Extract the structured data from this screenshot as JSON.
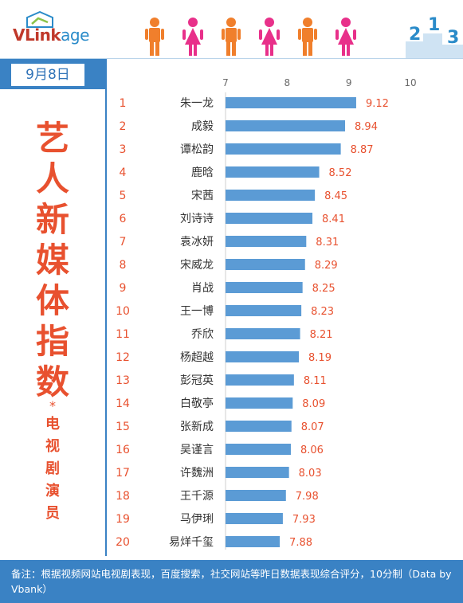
{
  "logo": {
    "brand": "VLink",
    "brand_suffix": "age"
  },
  "podium_numbers": [
    "2",
    "1",
    "3"
  ],
  "date": "9月8日",
  "title_chars": [
    "艺",
    "人",
    "新",
    "媒",
    "体",
    "指",
    "数"
  ],
  "title_star": "*",
  "subtitle_chars": [
    "电",
    "视",
    "剧",
    "演",
    "员"
  ],
  "footer_note": "备注：根据视频网站电视剧表现，百度搜索，社交网站等昨日数据表现综合评分，10分制（Data by Vbank）",
  "colors": {
    "bar": "#5b9bd5",
    "accent": "#e8512f",
    "header_blue": "#3a82c4",
    "male": "#f07f2c",
    "female": "#e8308a"
  },
  "people_icons": [
    "male-icon",
    "female-icon",
    "male-icon",
    "female-icon",
    "male-icon",
    "female-icon"
  ],
  "chart_data": {
    "type": "bar",
    "orientation": "horizontal",
    "xlim": [
      7,
      10
    ],
    "xticks": [
      "7",
      "8",
      "9",
      "10"
    ],
    "ranks": [
      "1",
      "2",
      "3",
      "4",
      "5",
      "6",
      "7",
      "8",
      "9",
      "10",
      "11",
      "12",
      "13",
      "14",
      "15",
      "16",
      "17",
      "18",
      "19",
      "20"
    ],
    "categories": [
      "朱一龙",
      "成毅",
      "谭松韵",
      "鹿晗",
      "宋茜",
      "刘诗诗",
      "袁冰妍",
      "宋威龙",
      "肖战",
      "王一博",
      "乔欣",
      "杨超越",
      "彭冠英",
      "白敬亭",
      "张新成",
      "吴谨言",
      "许魏洲",
      "王千源",
      "马伊琍",
      "易烊千玺"
    ],
    "values": [
      9.12,
      8.94,
      8.87,
      8.52,
      8.45,
      8.41,
      8.31,
      8.29,
      8.25,
      8.23,
      8.21,
      8.19,
      8.11,
      8.09,
      8.07,
      8.06,
      8.03,
      7.98,
      7.93,
      7.88
    ],
    "value_labels": [
      "9.12",
      "8.94",
      "8.87",
      "8.52",
      "8.45",
      "8.41",
      "8.31",
      "8.29",
      "8.25",
      "8.23",
      "8.21",
      "8.19",
      "8.11",
      "8.09",
      "8.07",
      "8.06",
      "8.03",
      "7.98",
      "7.93",
      "7.88"
    ]
  }
}
